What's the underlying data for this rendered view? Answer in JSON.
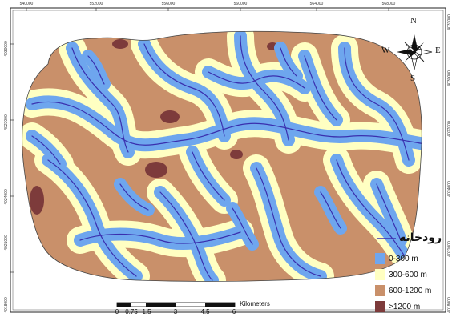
{
  "map": {
    "top_ticks": [
      "540000",
      "552000",
      "556000",
      "560000",
      "564000",
      "568000"
    ],
    "bottom_ticks": [
      "",
      "",
      "",
      "",
      "",
      "",
      ""
    ],
    "left_ticks": [
      "4030000",
      "4027000",
      "4024000",
      "4021000",
      "4018000"
    ],
    "right_ticks": [
      "4033000",
      "4030000",
      "4027000",
      "4024000",
      "4021000",
      "4018000"
    ]
  },
  "legend": {
    "river_label": "رودخانه",
    "items": [
      {
        "label": "0-300 m",
        "color": "#6ea6ee"
      },
      {
        "label": "300-600 m",
        "color": "#ffffc2"
      },
      {
        "label": "600-1200 m",
        "color": "#c9906a"
      },
      {
        "label": ">1200 m",
        "color": "#7d3b3b"
      }
    ],
    "river_color": "#3a2fae"
  },
  "scale_bar": {
    "ticks": [
      "0",
      "0.75",
      "1.5",
      "3",
      "4.5",
      "6"
    ],
    "unit": "Kilometers"
  },
  "compass": {
    "n": "N",
    "s": "S",
    "e": "E",
    "w": "W"
  }
}
